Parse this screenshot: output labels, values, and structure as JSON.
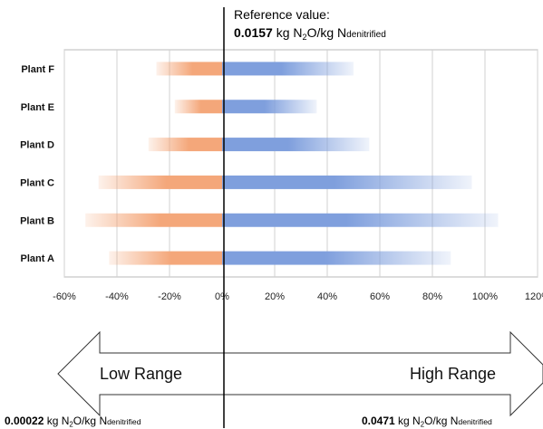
{
  "reference": {
    "label": "Reference value:",
    "value": "0.0157",
    "unit_pre": "kg N",
    "unit_sub": "2",
    "unit_mid": "O/kg N",
    "unit_suffix": "denitrified"
  },
  "low_bound": {
    "value": "0.00022",
    "unit_pre": "kg N",
    "unit_sub": "2",
    "unit_mid": "O/kg N",
    "unit_suffix": "denitrified"
  },
  "high_bound": {
    "value": "0.0471",
    "unit_pre": "kg N",
    "unit_sub": "2",
    "unit_mid": "O/kg N",
    "unit_suffix": "denitrified"
  },
  "arrows": {
    "low_label": "Low Range",
    "high_label": "High Range"
  },
  "colors": {
    "negative_bar": "#f4a77a",
    "positive_bar": "#7f9fdd",
    "center_line": "#000000",
    "grid": "#d0d0d0"
  },
  "chart_data": {
    "type": "bar",
    "orientation": "horizontal",
    "categories": [
      "Plant F",
      "Plant E",
      "Plant D",
      "Plant C",
      "Plant B",
      "Plant A"
    ],
    "series": [
      {
        "values": [
          -25,
          -18,
          -28,
          -47,
          -52,
          -43
        ]
      },
      {
        "values": [
          50,
          36,
          56,
          95,
          105,
          87
        ]
      }
    ],
    "x_ticks": [
      "-60%",
      "-40%",
      "-20%",
      "0%",
      "20%",
      "40%",
      "60%",
      "80%",
      "100%",
      "120%"
    ],
    "xlim": [
      -60,
      120
    ],
    "grid": true
  }
}
